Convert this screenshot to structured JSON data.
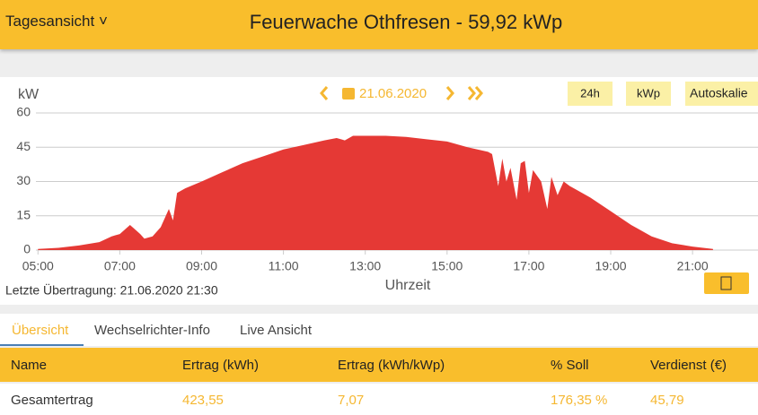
{
  "header": {
    "view": "Tagesansicht",
    "title": "Feuerwache Othfresen - 59,92 kWp"
  },
  "toolbar": {
    "date": "21.06.2020",
    "buttons": [
      "24h",
      "kWp",
      "Autoskalie"
    ]
  },
  "chart_data": {
    "type": "area",
    "y_label": "kW",
    "x_label": "Uhrzeit",
    "color": "#e53935",
    "grid": true,
    "x": [
      5.0,
      5.5,
      6.0,
      6.5,
      6.8,
      7.0,
      7.25,
      7.5,
      7.6,
      7.8,
      8.0,
      8.2,
      8.3,
      8.4,
      8.6,
      9.0,
      9.5,
      10.0,
      10.5,
      11.0,
      11.5,
      12.0,
      12.3,
      12.5,
      12.7,
      13.0,
      13.5,
      14.0,
      14.5,
      15.0,
      15.5,
      16.0,
      16.1,
      16.25,
      16.35,
      16.45,
      16.55,
      16.7,
      16.8,
      16.9,
      17.0,
      17.1,
      17.3,
      17.45,
      17.55,
      17.7,
      17.85,
      18.0,
      18.5,
      19.0,
      19.5,
      20.0,
      20.5,
      21.0,
      21.5
    ],
    "values": [
      0.5,
      1,
      2,
      3.5,
      6,
      7,
      11,
      7,
      5,
      6,
      10,
      18,
      13,
      25,
      27,
      30,
      34,
      38,
      41,
      44,
      46,
      48,
      49,
      48,
      50,
      50,
      50,
      49.5,
      48.5,
      47.5,
      45,
      43,
      42,
      28,
      40,
      30,
      36,
      22,
      38,
      39,
      25,
      35,
      30,
      18,
      32,
      24,
      30,
      28,
      23,
      17,
      11,
      6,
      3,
      1.5,
      0.5
    ],
    "xlim": [
      4.95,
      22.6
    ],
    "ylim": [
      0,
      60
    ],
    "yticks": [
      0,
      15,
      30,
      45,
      60
    ],
    "xticks": [
      {
        "value": 5,
        "label": "05:00"
      },
      {
        "value": 7,
        "label": "07:00"
      },
      {
        "value": 9,
        "label": "09:00"
      },
      {
        "value": 11,
        "label": "11:00"
      },
      {
        "value": 13,
        "label": "13:00"
      },
      {
        "value": 15,
        "label": "15:00"
      },
      {
        "value": 17,
        "label": "17:00"
      },
      {
        "value": 19,
        "label": "19:00"
      },
      {
        "value": 21,
        "label": "21:00"
      }
    ]
  },
  "footer": {
    "last_transfer": "Letzte Übertragung: 21.06.2020 21:30"
  },
  "tabs": [
    "Übersicht",
    "Wechselrichter-Info",
    "Live Ansicht"
  ],
  "table": {
    "columns": [
      "Name",
      "Ertrag (kWh)",
      "Ertrag (kWh/kWp)",
      "% Soll",
      "Verdienst (€)"
    ],
    "rows": [
      [
        "Gesamtertrag",
        "423,55",
        "7,07",
        "176,35 %",
        "45,79"
      ]
    ]
  }
}
